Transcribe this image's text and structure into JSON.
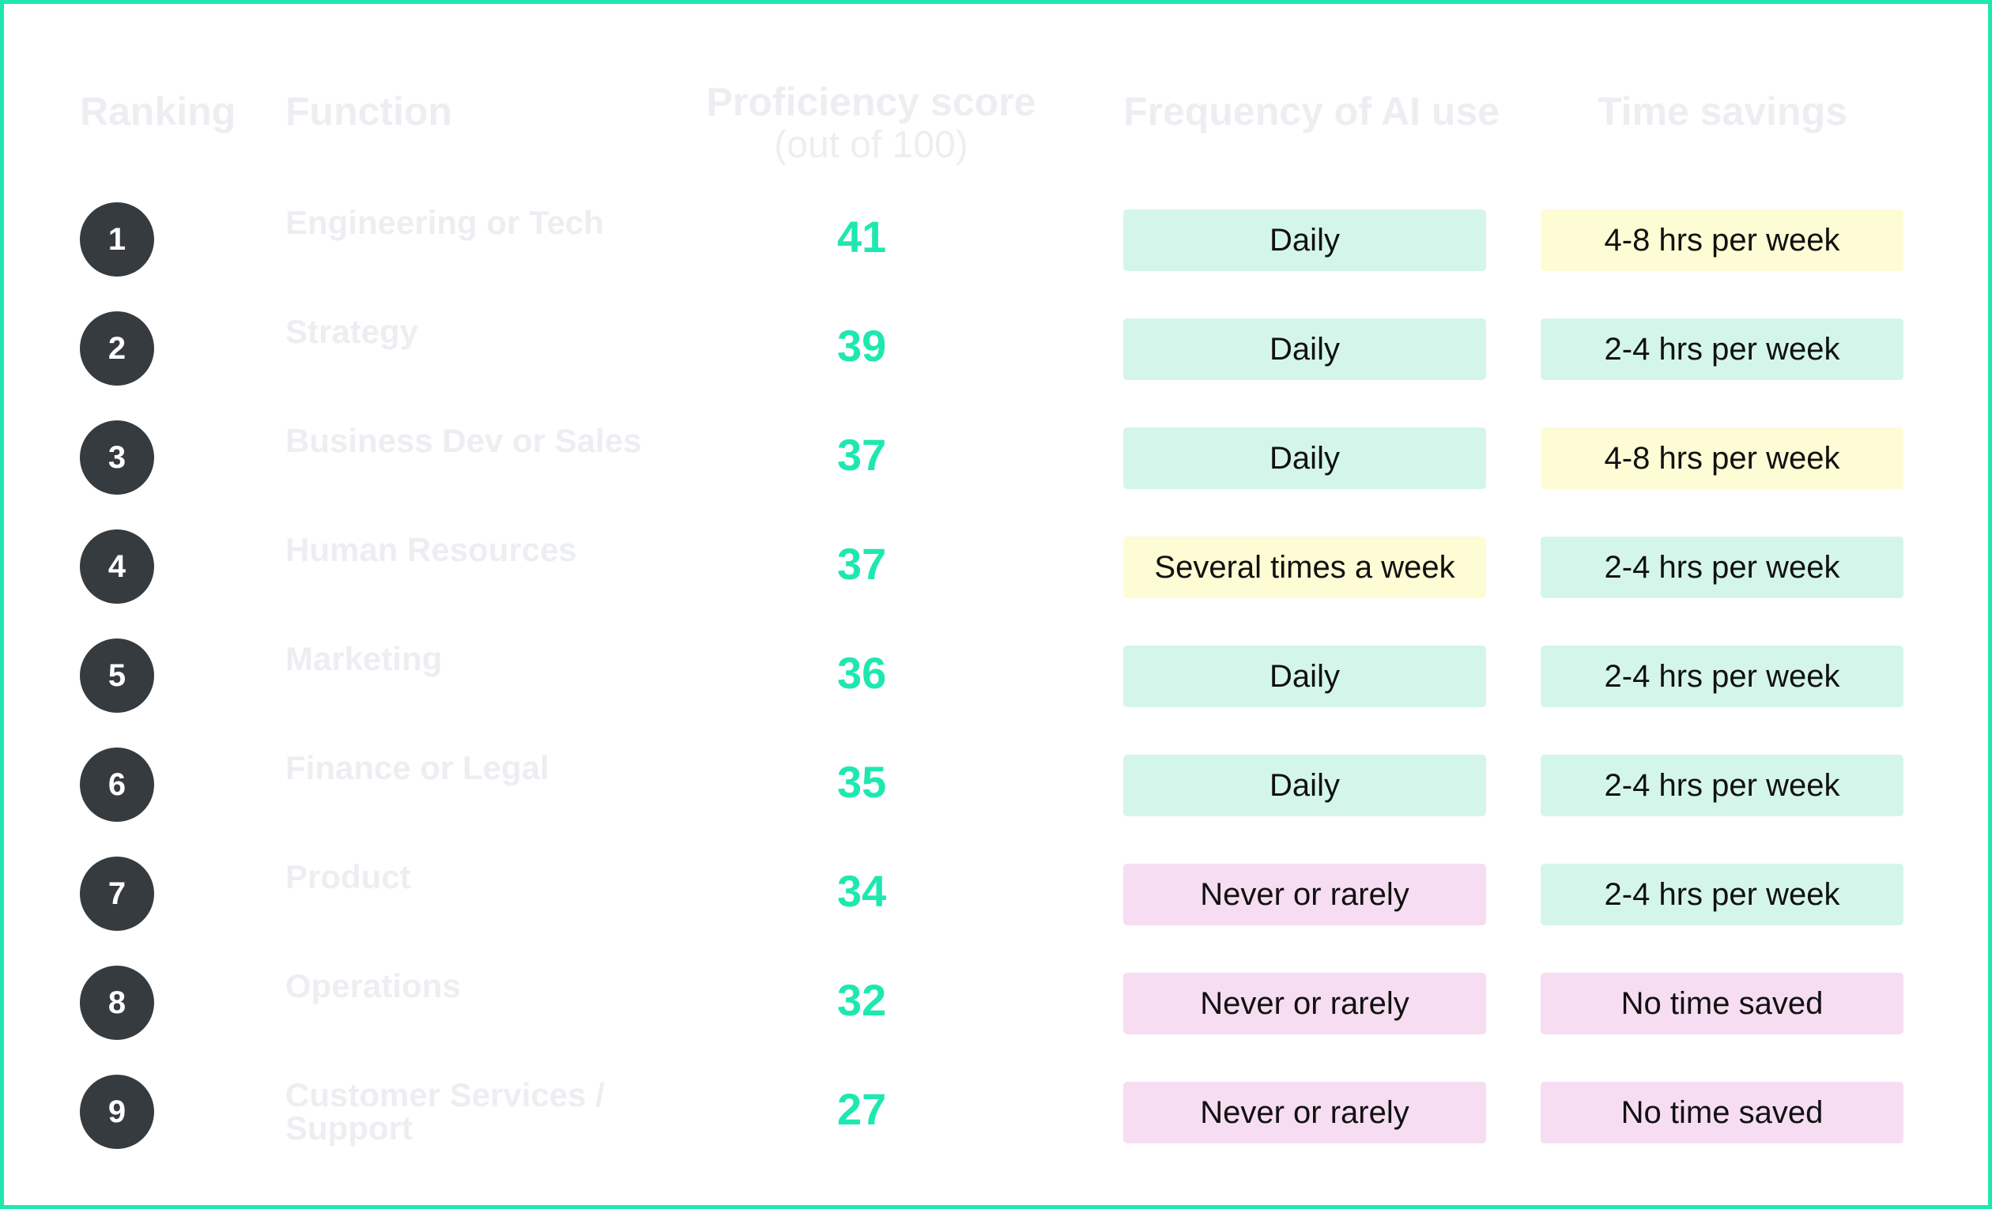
{
  "headers": {
    "ranking": "Ranking",
    "function": "Function",
    "proficiency": "Proficiency score",
    "proficiency_sub": "(out of 100)",
    "frequency": "Frequency of AI use",
    "time_savings": "Time savings"
  },
  "colors": {
    "accent": "#1ee8b0",
    "rank_badge": "#363b3f",
    "pill_green": "#d4f6ea",
    "pill_yellow": "#fdfcd4",
    "pill_pink": "#f6ddf2"
  },
  "rows": [
    {
      "rank": "1",
      "function": "Engineering or Tech",
      "score": "41",
      "frequency": "Daily",
      "frequency_tone": "green",
      "time_savings": "4-8 hrs per week",
      "time_tone": "yellow"
    },
    {
      "rank": "2",
      "function": "Strategy",
      "score": "39",
      "frequency": "Daily",
      "frequency_tone": "green",
      "time_savings": "2-4 hrs per week",
      "time_tone": "green"
    },
    {
      "rank": "3",
      "function": "Business Dev or Sales",
      "score": "37",
      "frequency": "Daily",
      "frequency_tone": "green",
      "time_savings": "4-8 hrs per week",
      "time_tone": "yellow"
    },
    {
      "rank": "4",
      "function": "Human Resources",
      "score": "37",
      "frequency": "Several times a week",
      "frequency_tone": "yellow",
      "time_savings": "2-4 hrs per week",
      "time_tone": "green"
    },
    {
      "rank": "5",
      "function": "Marketing",
      "score": "36",
      "frequency": "Daily",
      "frequency_tone": "green",
      "time_savings": "2-4 hrs per week",
      "time_tone": "green"
    },
    {
      "rank": "6",
      "function": "Finance or Legal",
      "score": "35",
      "frequency": "Daily",
      "frequency_tone": "green",
      "time_savings": "2-4 hrs per week",
      "time_tone": "green"
    },
    {
      "rank": "7",
      "function": "Product",
      "score": "34",
      "frequency": "Never or rarely",
      "frequency_tone": "pink",
      "time_savings": "2-4 hrs per week",
      "time_tone": "green"
    },
    {
      "rank": "8",
      "function": "Operations",
      "score": "32",
      "frequency": "Never or rarely",
      "frequency_tone": "pink",
      "time_savings": "No time saved",
      "time_tone": "pink"
    },
    {
      "rank": "9",
      "function": "Customer Services / Support",
      "score": "27",
      "frequency": "Never or rarely",
      "frequency_tone": "pink",
      "time_savings": "No time saved",
      "time_tone": "pink"
    }
  ]
}
